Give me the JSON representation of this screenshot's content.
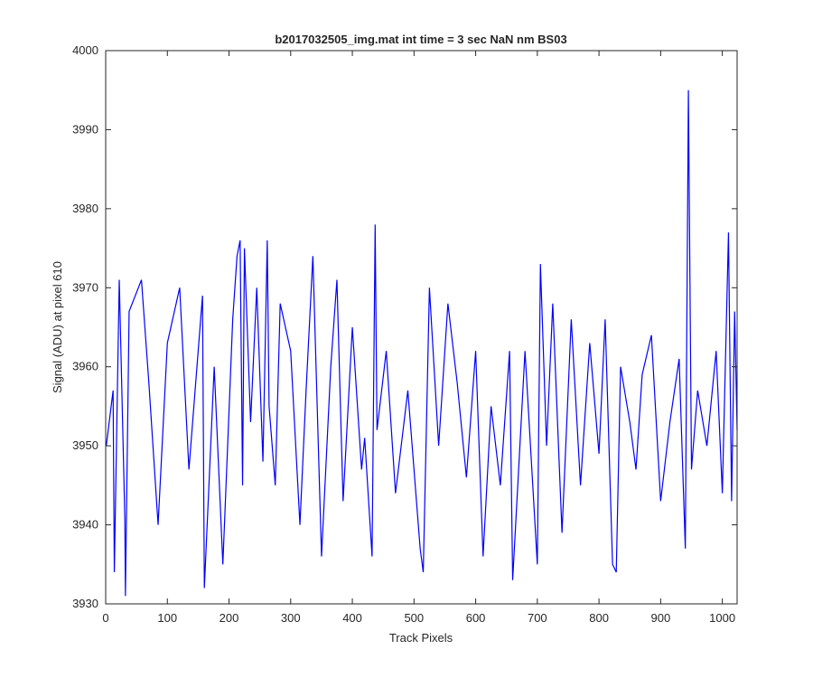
{
  "chart_data": {
    "type": "line",
    "title": "b2017032505_img.mat int time = 3 sec  NaN nm BS03",
    "xlabel": "Track Pixels",
    "ylabel": "Signal (ADU) at pixel 610",
    "xlim": [
      0,
      1024
    ],
    "ylim": [
      3930,
      4000
    ],
    "xticks": [
      0,
      100,
      200,
      300,
      400,
      500,
      600,
      700,
      800,
      900,
      1000
    ],
    "yticks": [
      3930,
      3940,
      3950,
      3960,
      3970,
      3980,
      3990,
      4000
    ],
    "xtick_labels": [
      "0",
      "100",
      "200",
      "300",
      "400",
      "500",
      "600",
      "700",
      "800",
      "900",
      "1000"
    ],
    "ytick_labels": [
      "3930",
      "3940",
      "3950",
      "3960",
      "3970",
      "3980",
      "3990",
      "4000"
    ],
    "grid": false,
    "series": [
      {
        "color": "#0000ff",
        "x": [
          1,
          12,
          14,
          22,
          31,
          32,
          38,
          58,
          70,
          85,
          100,
          120,
          135,
          143,
          157,
          160,
          176,
          190,
          206,
          213,
          218,
          222,
          225,
          235,
          245,
          255,
          262,
          265,
          275,
          283,
          300,
          315,
          325,
          336,
          350,
          365,
          375,
          385,
          400,
          415,
          420,
          432,
          437,
          440,
          455,
          470,
          490,
          510,
          515,
          525,
          540,
          555,
          570,
          585,
          600,
          612,
          625,
          640,
          655,
          660,
          680,
          700,
          705,
          715,
          725,
          740,
          755,
          770,
          785,
          800,
          810,
          822,
          828,
          835,
          850,
          860,
          870,
          885,
          900,
          915,
          930,
          940,
          945,
          950,
          960,
          975,
          990,
          1000,
          1010,
          1015,
          1020,
          1024
        ],
        "y": [
          3950,
          3957,
          3934,
          3971,
          3941,
          3931,
          3967,
          3971,
          3958,
          3940,
          3963,
          3970,
          3947,
          3955,
          3969,
          3932,
          3960,
          3935,
          3966,
          3974,
          3976,
          3945,
          3975,
          3953,
          3970,
          3948,
          3976,
          3955,
          3945,
          3968,
          3962,
          3940,
          3957,
          3974,
          3936,
          3960,
          3971,
          3943,
          3965,
          3947,
          3951,
          3936,
          3978,
          3952,
          3962,
          3944,
          3957,
          3937,
          3934,
          3970,
          3950,
          3968,
          3958,
          3946,
          3962,
          3936,
          3955,
          3945,
          3962,
          3933,
          3962,
          3935,
          3973,
          3950,
          3968,
          3939,
          3966,
          3945,
          3963,
          3949,
          3966,
          3935,
          3934,
          3960,
          3953,
          3947,
          3959,
          3964,
          3943,
          3953,
          3961,
          3937,
          3995,
          3947,
          3957,
          3950,
          3962,
          3944,
          3977,
          3943,
          3967,
          3952
        ]
      }
    ]
  }
}
